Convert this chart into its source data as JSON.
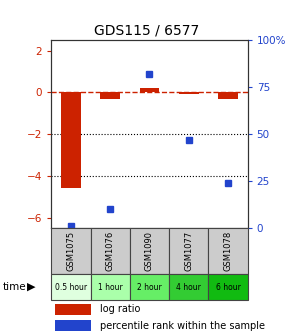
{
  "title": "GDS115 / 6577",
  "samples": [
    "GSM1075",
    "GSM1076",
    "GSM1090",
    "GSM1077",
    "GSM1078"
  ],
  "time_labels": [
    "0.5 hour",
    "1 hour",
    "2 hour",
    "4 hour",
    "6 hour"
  ],
  "time_colors": [
    "#dfffdf",
    "#aaffaa",
    "#66ee66",
    "#33cc33",
    "#11bb11"
  ],
  "log_ratios": [
    -4.6,
    -0.3,
    0.2,
    -0.05,
    -0.3
  ],
  "percentile_ranks": [
    1.0,
    10.0,
    82.0,
    47.0,
    24.0
  ],
  "ylim_left": [
    -6.5,
    2.5
  ],
  "ylim_right": [
    0,
    100
  ],
  "bar_color": "#cc2200",
  "dot_color": "#2244cc",
  "dashed_color": "#cc2200",
  "bg_color": "#ffffff",
  "label_color_left": "#cc2200",
  "label_color_right": "#2244cc",
  "yticks_left": [
    -6,
    -4,
    -2,
    0,
    2
  ],
  "yticks_right": [
    0,
    25,
    50,
    75,
    100
  ],
  "sample_bg": "#cccccc",
  "bar_width": 0.5
}
